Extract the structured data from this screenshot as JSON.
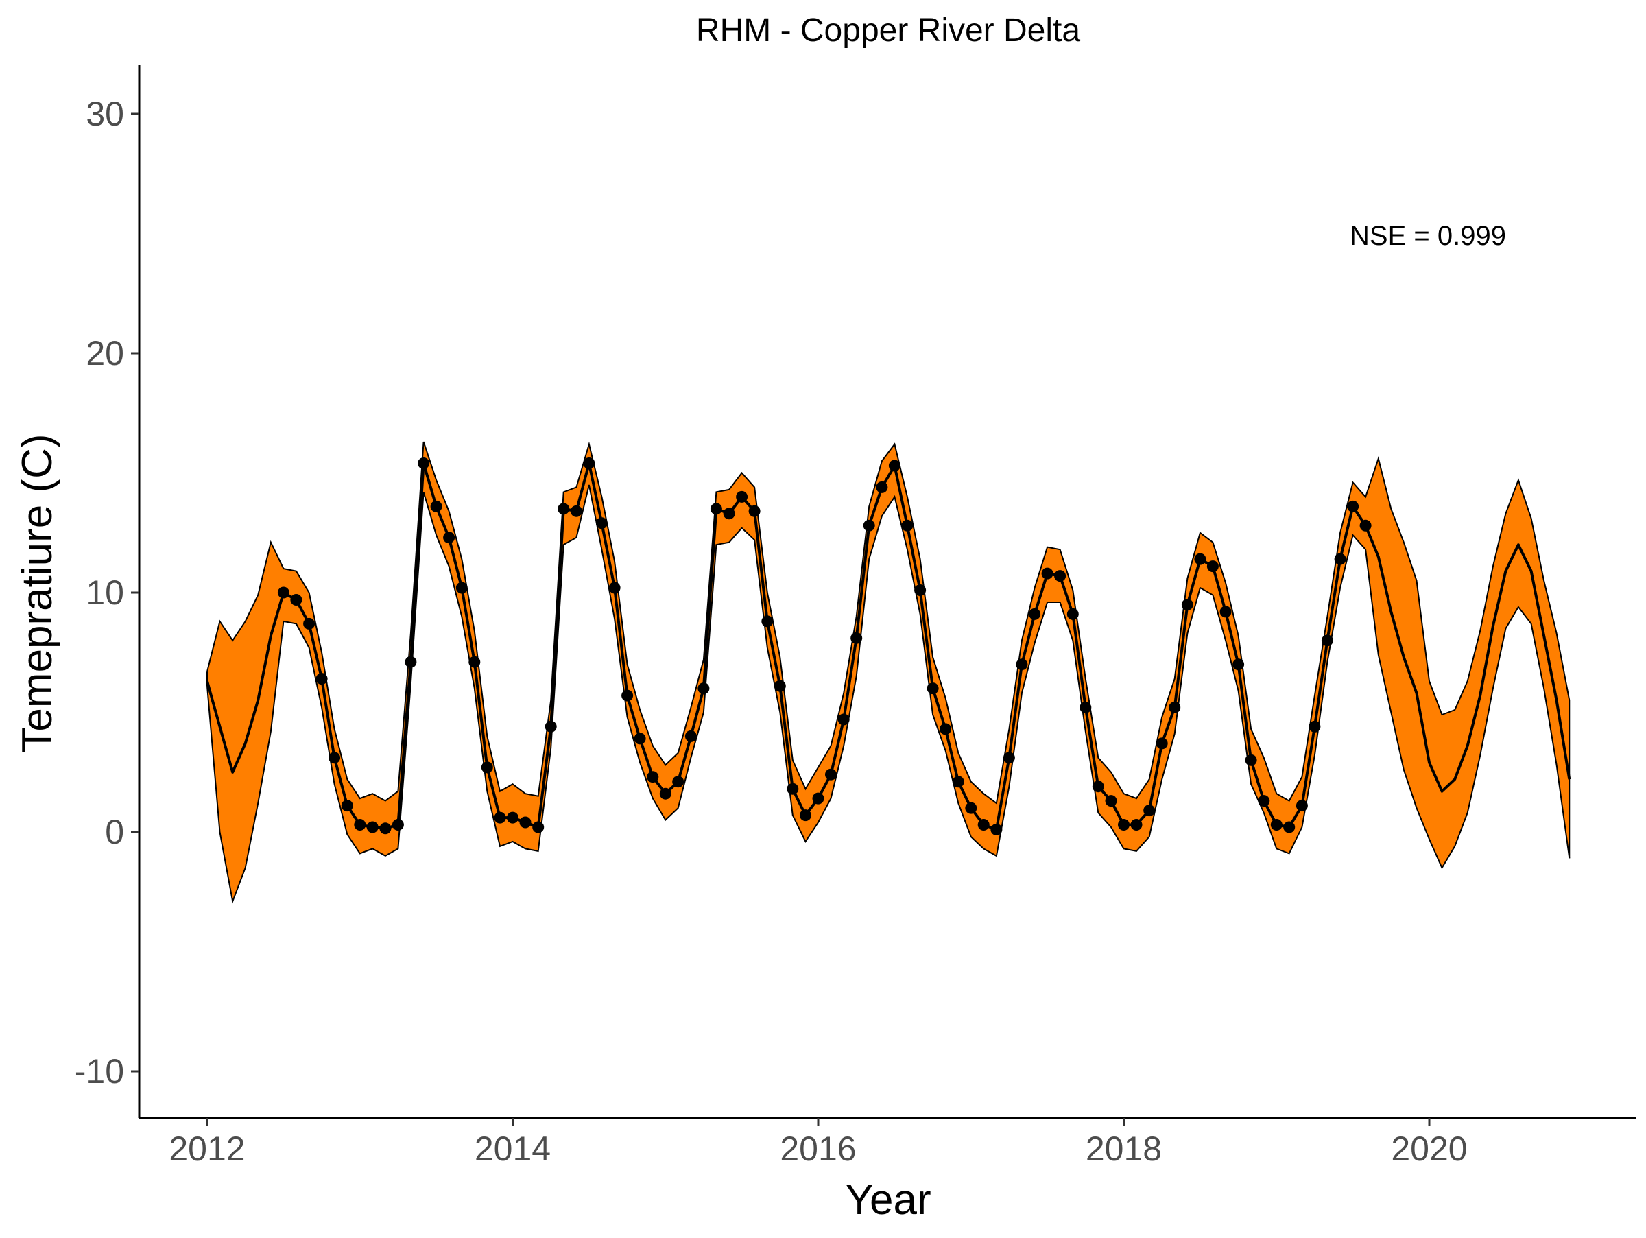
{
  "chart_data": {
    "type": "line",
    "title": "RHM - Copper River Delta",
    "xlabel": "Year",
    "ylabel": "Temepratiure (C)",
    "xlim": [
      2011.55,
      2021.4
    ],
    "ylim": [
      -12,
      32
    ],
    "x_ticks": [
      2012,
      2014,
      2016,
      2018,
      2020
    ],
    "y_ticks": [
      -10,
      0,
      10,
      20,
      30
    ],
    "x_tick_labels": [
      "2012",
      "2014",
      "2016",
      "2018",
      "2020"
    ],
    "y_tick_labels": [
      "-10",
      "0",
      "10",
      "20",
      "30"
    ],
    "grid": false,
    "annotation": "NSE = 0.999",
    "colors": {
      "band_fill": "#ff7f00",
      "band_edge": "#000000",
      "line": "#000000",
      "points": "#000000"
    },
    "series": [
      {
        "kind": "interval",
        "x": [
          2012.0,
          2012.083,
          2012.167,
          2012.25,
          2012.333,
          2012.417,
          2012.5,
          2012.583,
          2012.667,
          2012.75,
          2012.833,
          2012.917,
          2013.0,
          2013.083,
          2013.167,
          2013.25,
          2013.333,
          2013.417,
          2013.5,
          2013.583,
          2013.667,
          2013.75,
          2013.833,
          2013.917,
          2014.0,
          2014.083,
          2014.167,
          2014.25,
          2014.333,
          2014.417,
          2014.5,
          2014.583,
          2014.667,
          2014.75,
          2014.833,
          2014.917,
          2015.0,
          2015.083,
          2015.167,
          2015.25,
          2015.333,
          2015.417,
          2015.5,
          2015.583,
          2015.667,
          2015.75,
          2015.833,
          2015.917,
          2016.0,
          2016.083,
          2016.167,
          2016.25,
          2016.333,
          2016.417,
          2016.5,
          2016.583,
          2016.667,
          2016.75,
          2016.833,
          2016.917,
          2017.0,
          2017.083,
          2017.167,
          2017.25,
          2017.333,
          2017.417,
          2017.5,
          2017.583,
          2017.667,
          2017.75,
          2017.833,
          2017.917,
          2018.0,
          2018.083,
          2018.167,
          2018.25,
          2018.333,
          2018.417,
          2018.5,
          2018.583,
          2018.667,
          2018.75,
          2018.833,
          2018.917,
          2019.0,
          2019.083,
          2019.167,
          2019.25,
          2019.333,
          2019.417,
          2019.5,
          2019.583,
          2019.667,
          2019.75,
          2019.833,
          2019.917,
          2020.0,
          2020.083,
          2020.167,
          2020.25,
          2020.333,
          2020.417,
          2020.5,
          2020.583,
          2020.667,
          2020.75,
          2020.833,
          2020.917
        ],
        "lower": [
          6.1,
          0.0,
          -2.9,
          -1.5,
          1.2,
          4.2,
          8.8,
          8.7,
          7.7,
          5.2,
          2.0,
          -0.1,
          -0.9,
          -0.7,
          -1.0,
          -0.7,
          6.2,
          14.2,
          12.4,
          11.1,
          9.0,
          6.0,
          1.7,
          -0.6,
          -0.4,
          -0.7,
          -0.8,
          3.5,
          12.0,
          12.3,
          14.5,
          11.8,
          8.9,
          4.8,
          2.9,
          1.4,
          0.5,
          1.0,
          3.1,
          5.0,
          12.0,
          12.1,
          12.7,
          12.2,
          7.7,
          5.0,
          0.7,
          -0.4,
          0.4,
          1.4,
          3.6,
          6.5,
          11.4,
          13.2,
          14.0,
          11.8,
          9.1,
          4.9,
          3.4,
          1.2,
          -0.2,
          -0.7,
          -1.0,
          1.9,
          5.8,
          7.9,
          9.6,
          9.6,
          8.0,
          4.2,
          0.8,
          0.2,
          -0.7,
          -0.8,
          -0.2,
          2.2,
          4.1,
          8.3,
          10.2,
          9.9,
          8.0,
          5.9,
          2.0,
          0.8,
          -0.7,
          -0.9,
          0.2,
          3.2,
          7.1,
          10.2,
          12.4,
          11.8,
          7.4,
          5.0,
          2.6,
          1.0,
          -0.3,
          -1.5,
          -0.6,
          0.8,
          3.2,
          6.0,
          8.5,
          9.4,
          8.7,
          6.0,
          2.8,
          -1.1
        ],
        "upper": [
          6.7,
          8.8,
          8.0,
          8.8,
          9.9,
          12.1,
          11.0,
          10.9,
          10.0,
          7.5,
          4.3,
          2.2,
          1.4,
          1.6,
          1.3,
          1.7,
          8.3,
          16.3,
          14.7,
          13.4,
          11.4,
          8.4,
          4.0,
          1.7,
          2.0,
          1.6,
          1.5,
          5.5,
          14.2,
          14.4,
          16.2,
          14.0,
          11.3,
          7.0,
          5.1,
          3.6,
          2.8,
          3.3,
          5.2,
          7.2,
          14.2,
          14.3,
          15.0,
          14.4,
          10.0,
          7.3,
          3.0,
          1.8,
          2.7,
          3.6,
          5.8,
          9.0,
          13.6,
          15.5,
          16.2,
          14.0,
          11.4,
          7.3,
          5.6,
          3.3,
          2.1,
          1.6,
          1.2,
          4.3,
          8.0,
          10.2,
          11.9,
          11.8,
          10.1,
          6.4,
          3.1,
          2.5,
          1.6,
          1.4,
          2.2,
          4.8,
          6.4,
          10.6,
          12.5,
          12.1,
          10.4,
          8.2,
          4.3,
          3.1,
          1.6,
          1.3,
          2.3,
          5.7,
          9.0,
          12.5,
          14.6,
          14.0,
          15.6,
          13.5,
          12.1,
          10.5,
          6.3,
          4.9,
          5.1,
          6.3,
          8.4,
          11.1,
          13.3,
          14.7,
          13.1,
          10.5,
          8.3,
          5.5
        ]
      },
      {
        "kind": "line",
        "x": [
          2012.0,
          2012.083,
          2012.167,
          2012.25,
          2012.333,
          2012.417,
          2012.5,
          2012.583,
          2012.667,
          2012.75,
          2012.833,
          2012.917,
          2013.0,
          2013.083,
          2013.167,
          2013.25,
          2013.333,
          2013.417,
          2013.5,
          2013.583,
          2013.667,
          2013.75,
          2013.833,
          2013.917,
          2014.0,
          2014.083,
          2014.167,
          2014.25,
          2014.333,
          2014.417,
          2014.5,
          2014.583,
          2014.667,
          2014.75,
          2014.833,
          2014.917,
          2015.0,
          2015.083,
          2015.167,
          2015.25,
          2015.333,
          2015.417,
          2015.5,
          2015.583,
          2015.667,
          2015.75,
          2015.833,
          2015.917,
          2016.0,
          2016.083,
          2016.167,
          2016.25,
          2016.333,
          2016.417,
          2016.5,
          2016.583,
          2016.667,
          2016.75,
          2016.833,
          2016.917,
          2017.0,
          2017.083,
          2017.167,
          2017.25,
          2017.333,
          2017.417,
          2017.5,
          2017.583,
          2017.667,
          2017.75,
          2017.833,
          2017.917,
          2018.0,
          2018.083,
          2018.167,
          2018.25,
          2018.333,
          2018.417,
          2018.5,
          2018.583,
          2018.667,
          2018.75,
          2018.833,
          2018.917,
          2019.0,
          2019.083,
          2019.167,
          2019.25,
          2019.333,
          2019.417,
          2019.5,
          2019.583,
          2019.667,
          2019.75,
          2019.833,
          2019.917,
          2020.0,
          2020.083,
          2020.167,
          2020.25,
          2020.333,
          2020.417,
          2020.5,
          2020.583,
          2020.667,
          2020.75,
          2020.833,
          2020.917
        ],
        "y": [
          6.3,
          4.4,
          2.5,
          3.7,
          5.5,
          8.2,
          10.0,
          9.7,
          8.7,
          6.4,
          3.1,
          1.1,
          0.3,
          0.2,
          0.15,
          0.3,
          7.1,
          15.4,
          13.6,
          12.3,
          10.2,
          7.1,
          2.7,
          0.6,
          0.6,
          0.4,
          0.2,
          4.4,
          13.5,
          13.4,
          15.4,
          12.9,
          10.2,
          5.7,
          3.9,
          2.3,
          1.6,
          2.1,
          4.0,
          6.0,
          13.5,
          13.3,
          14.0,
          13.4,
          8.8,
          6.1,
          1.8,
          0.7,
          1.4,
          2.4,
          4.7,
          8.1,
          12.8,
          14.4,
          15.3,
          12.8,
          10.1,
          6.0,
          4.3,
          2.1,
          1.0,
          0.3,
          0.1,
          3.1,
          7.0,
          9.1,
          10.8,
          10.7,
          9.1,
          5.2,
          1.9,
          1.3,
          0.3,
          0.3,
          0.9,
          3.7,
          5.2,
          9.5,
          11.4,
          11.1,
          9.2,
          7.0,
          3.0,
          1.3,
          0.3,
          0.2,
          1.1,
          4.4,
          8.0,
          11.4,
          13.6,
          12.8,
          11.5,
          9.2,
          7.3,
          5.8,
          2.9,
          1.7,
          2.2,
          3.6,
          5.7,
          8.6,
          10.9,
          12.0,
          10.9,
          8.2,
          5.5,
          2.2
        ]
      },
      {
        "kind": "points",
        "x": [
          2012.5,
          2012.583,
          2012.667,
          2012.75,
          2012.833,
          2012.917,
          2013.0,
          2013.083,
          2013.167,
          2013.25,
          2013.333,
          2013.417,
          2013.5,
          2013.583,
          2013.667,
          2013.75,
          2013.833,
          2013.917,
          2014.0,
          2014.083,
          2014.167,
          2014.25,
          2014.333,
          2014.417,
          2014.5,
          2014.583,
          2014.667,
          2014.75,
          2014.833,
          2014.917,
          2015.0,
          2015.083,
          2015.167,
          2015.25,
          2015.333,
          2015.417,
          2015.5,
          2015.583,
          2015.667,
          2015.75,
          2015.833,
          2015.917,
          2016.0,
          2016.083,
          2016.167,
          2016.25,
          2016.333,
          2016.417,
          2016.5,
          2016.583,
          2016.667,
          2016.75,
          2016.833,
          2016.917,
          2017.0,
          2017.083,
          2017.167,
          2017.25,
          2017.333,
          2017.417,
          2017.5,
          2017.583,
          2017.667,
          2017.75,
          2017.833,
          2017.917,
          2018.0,
          2018.083,
          2018.167,
          2018.25,
          2018.333,
          2018.417,
          2018.5,
          2018.583,
          2018.667,
          2018.75,
          2018.833,
          2018.917,
          2019.0,
          2019.083,
          2019.167,
          2019.25,
          2019.333,
          2019.417,
          2019.5,
          2019.583
        ],
        "y": [
          10.0,
          9.7,
          8.7,
          6.4,
          3.1,
          1.1,
          0.3,
          0.2,
          0.15,
          0.3,
          7.1,
          15.4,
          13.6,
          12.3,
          10.2,
          7.1,
          2.7,
          0.6,
          0.6,
          0.4,
          0.2,
          4.4,
          13.5,
          13.4,
          15.4,
          12.9,
          10.2,
          5.7,
          3.9,
          2.3,
          1.6,
          2.1,
          4.0,
          6.0,
          13.5,
          13.3,
          14.0,
          13.4,
          8.8,
          6.1,
          1.8,
          0.7,
          1.4,
          2.4,
          4.7,
          8.1,
          12.8,
          14.4,
          15.3,
          12.8,
          10.1,
          6.0,
          4.3,
          2.1,
          1.0,
          0.3,
          0.1,
          3.1,
          7.0,
          9.1,
          10.8,
          10.7,
          9.1,
          5.2,
          1.9,
          1.3,
          0.3,
          0.3,
          0.9,
          3.7,
          5.2,
          9.5,
          11.4,
          11.1,
          9.2,
          7.0,
          3.0,
          1.3,
          0.3,
          0.2,
          1.1,
          4.4,
          8.0,
          11.4,
          13.6,
          12.8
        ]
      }
    ]
  }
}
